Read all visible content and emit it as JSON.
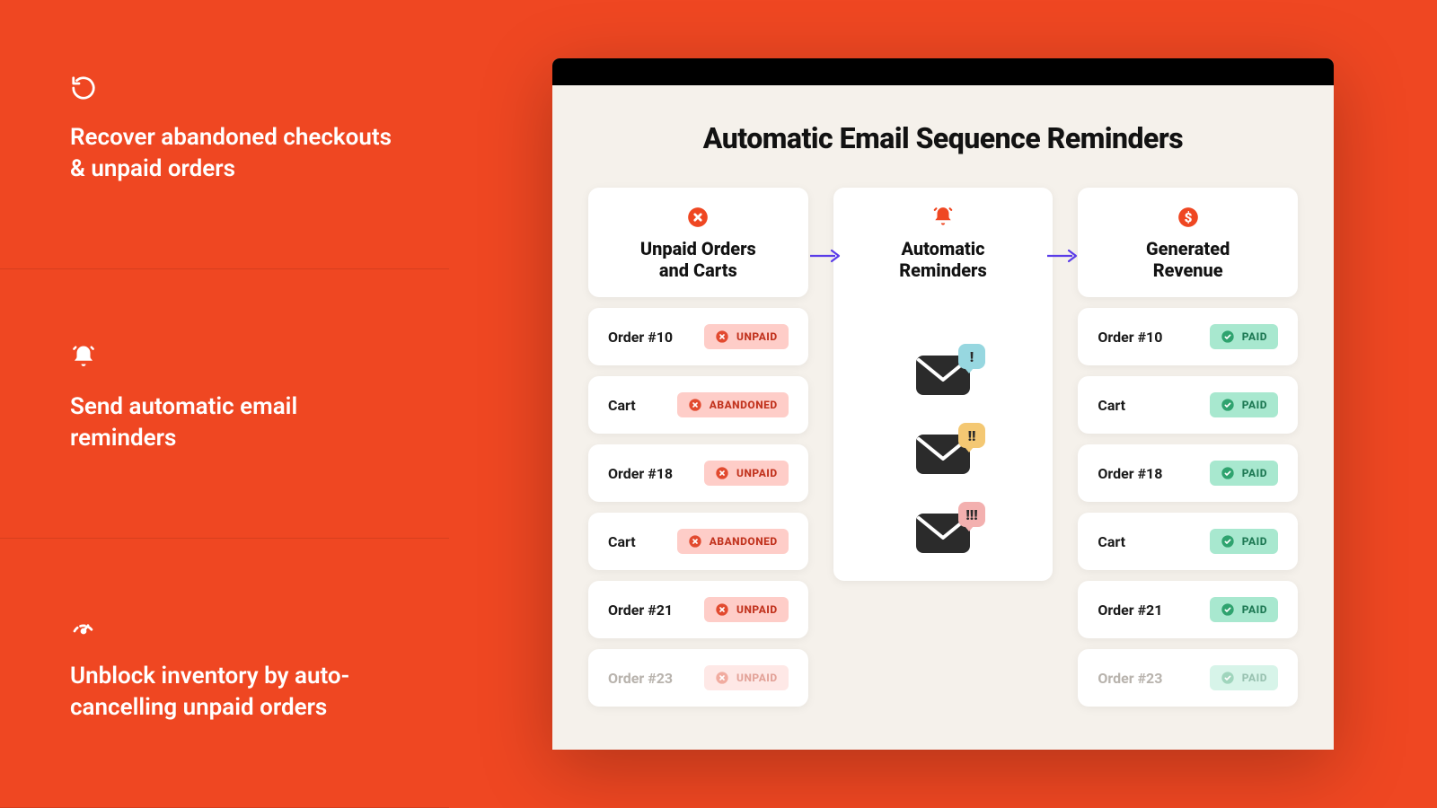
{
  "colors": {
    "orange_bg": "#ef4722",
    "orange_divider": "#d73f1e",
    "doc_bg": "#f5f1eb",
    "text_dark": "#121212",
    "arrow": "#5a3ce8",
    "badge_unpaid_bg": "#fecdc8",
    "badge_unpaid_text": "#c2341f",
    "badge_unpaid_dot": "#e24a2f",
    "badge_paid_bg": "#a8e8cf",
    "badge_paid_text": "#1f7a55",
    "badge_paid_dot": "#2fa36f",
    "mail_body": "#2b2b2b",
    "bubble1_bg": "#97d7e0",
    "bubble2_bg": "#f4c873",
    "bubble3_bg": "#f3b0af",
    "bubble_text": "#2b2b2b"
  },
  "left_features": [
    {
      "icon": "undo",
      "text": "Recover abandoned checkouts & unpaid orders"
    },
    {
      "icon": "bell",
      "text": "Send automatic email reminders"
    },
    {
      "icon": "gauge",
      "text": "Unblock inventory by auto-cancelling unpaid orders"
    }
  ],
  "doc": {
    "title": "Automatic Email Sequence Reminders",
    "columns": {
      "left": {
        "icon": "x-circle",
        "title_l1": "Unpaid Orders",
        "title_l2": "and Carts"
      },
      "middle": {
        "icon": "bell-orange",
        "title_l1": "Automatic",
        "title_l2": "Reminders"
      },
      "right": {
        "icon": "dollar",
        "title_l1": "Generated",
        "title_l2": "Revenue"
      }
    },
    "left_rows": [
      {
        "label": "Order #10",
        "status": "UNPAID",
        "faded": false
      },
      {
        "label": "Cart",
        "status": "ABANDONED",
        "faded": false
      },
      {
        "label": "Order #18",
        "status": "UNPAID",
        "faded": false
      },
      {
        "label": "Cart",
        "status": "ABANDONED",
        "faded": false
      },
      {
        "label": "Order #21",
        "status": "UNPAID",
        "faded": false
      },
      {
        "label": "Order #23",
        "status": "UNPAID",
        "faded": true
      }
    ],
    "right_rows": [
      {
        "label": "Order #10",
        "status": "PAID",
        "faded": false
      },
      {
        "label": "Cart",
        "status": "PAID",
        "faded": false
      },
      {
        "label": "Order #18",
        "status": "PAID",
        "faded": false
      },
      {
        "label": "Cart",
        "status": "PAID",
        "faded": false
      },
      {
        "label": "Order #21",
        "status": "PAID",
        "faded": false
      },
      {
        "label": "Order #23",
        "status": "PAID",
        "faded": true
      }
    ],
    "reminders": [
      {
        "bubble_color_key": "bubble1_bg",
        "marks": "!"
      },
      {
        "bubble_color_key": "bubble2_bg",
        "marks": "!!"
      },
      {
        "bubble_color_key": "bubble3_bg",
        "marks": "!!!"
      }
    ]
  }
}
